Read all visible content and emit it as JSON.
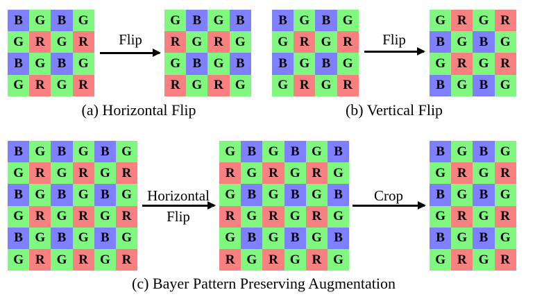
{
  "colors": {
    "B": "#7f80ff",
    "G": "#80f880",
    "R": "#f88080"
  },
  "panels": {
    "a": {
      "caption": "(a) Horizontal Flip",
      "arrow_label": "Flip",
      "input": [
        "BGBG",
        "GRGR",
        "BGBG",
        "GRGR"
      ],
      "output": [
        "GBGB",
        "RGRG",
        "GBGB",
        "RGRG"
      ]
    },
    "b": {
      "caption": "(b) Vertical Flip",
      "arrow_label": "Flip",
      "input": [
        "BGBG",
        "GRGR",
        "BGBG",
        "GRGR"
      ],
      "output": [
        "GRGR",
        "BGBG",
        "GRGR",
        "BGBG"
      ]
    },
    "c": {
      "caption": "(c) Bayer Pattern Preserving Augmentation",
      "arrow1_label_line1": "Horizontal",
      "arrow1_label_line2": "Flip",
      "arrow2_label": "Crop",
      "input": [
        "BGBGBG",
        "GRGRGR",
        "BGBGBG",
        "GRGRGR",
        "BGBGBG",
        "GRGRGR"
      ],
      "flipped": [
        "GBGBGB",
        "RGRGRG",
        "GBGBGB",
        "RGRGRG",
        "GBGBGB",
        "RGRGRG"
      ],
      "cropped": [
        "BGBG",
        "GRGR",
        "BGBG",
        "GRGR",
        "BGBG",
        "GRGR"
      ]
    }
  }
}
